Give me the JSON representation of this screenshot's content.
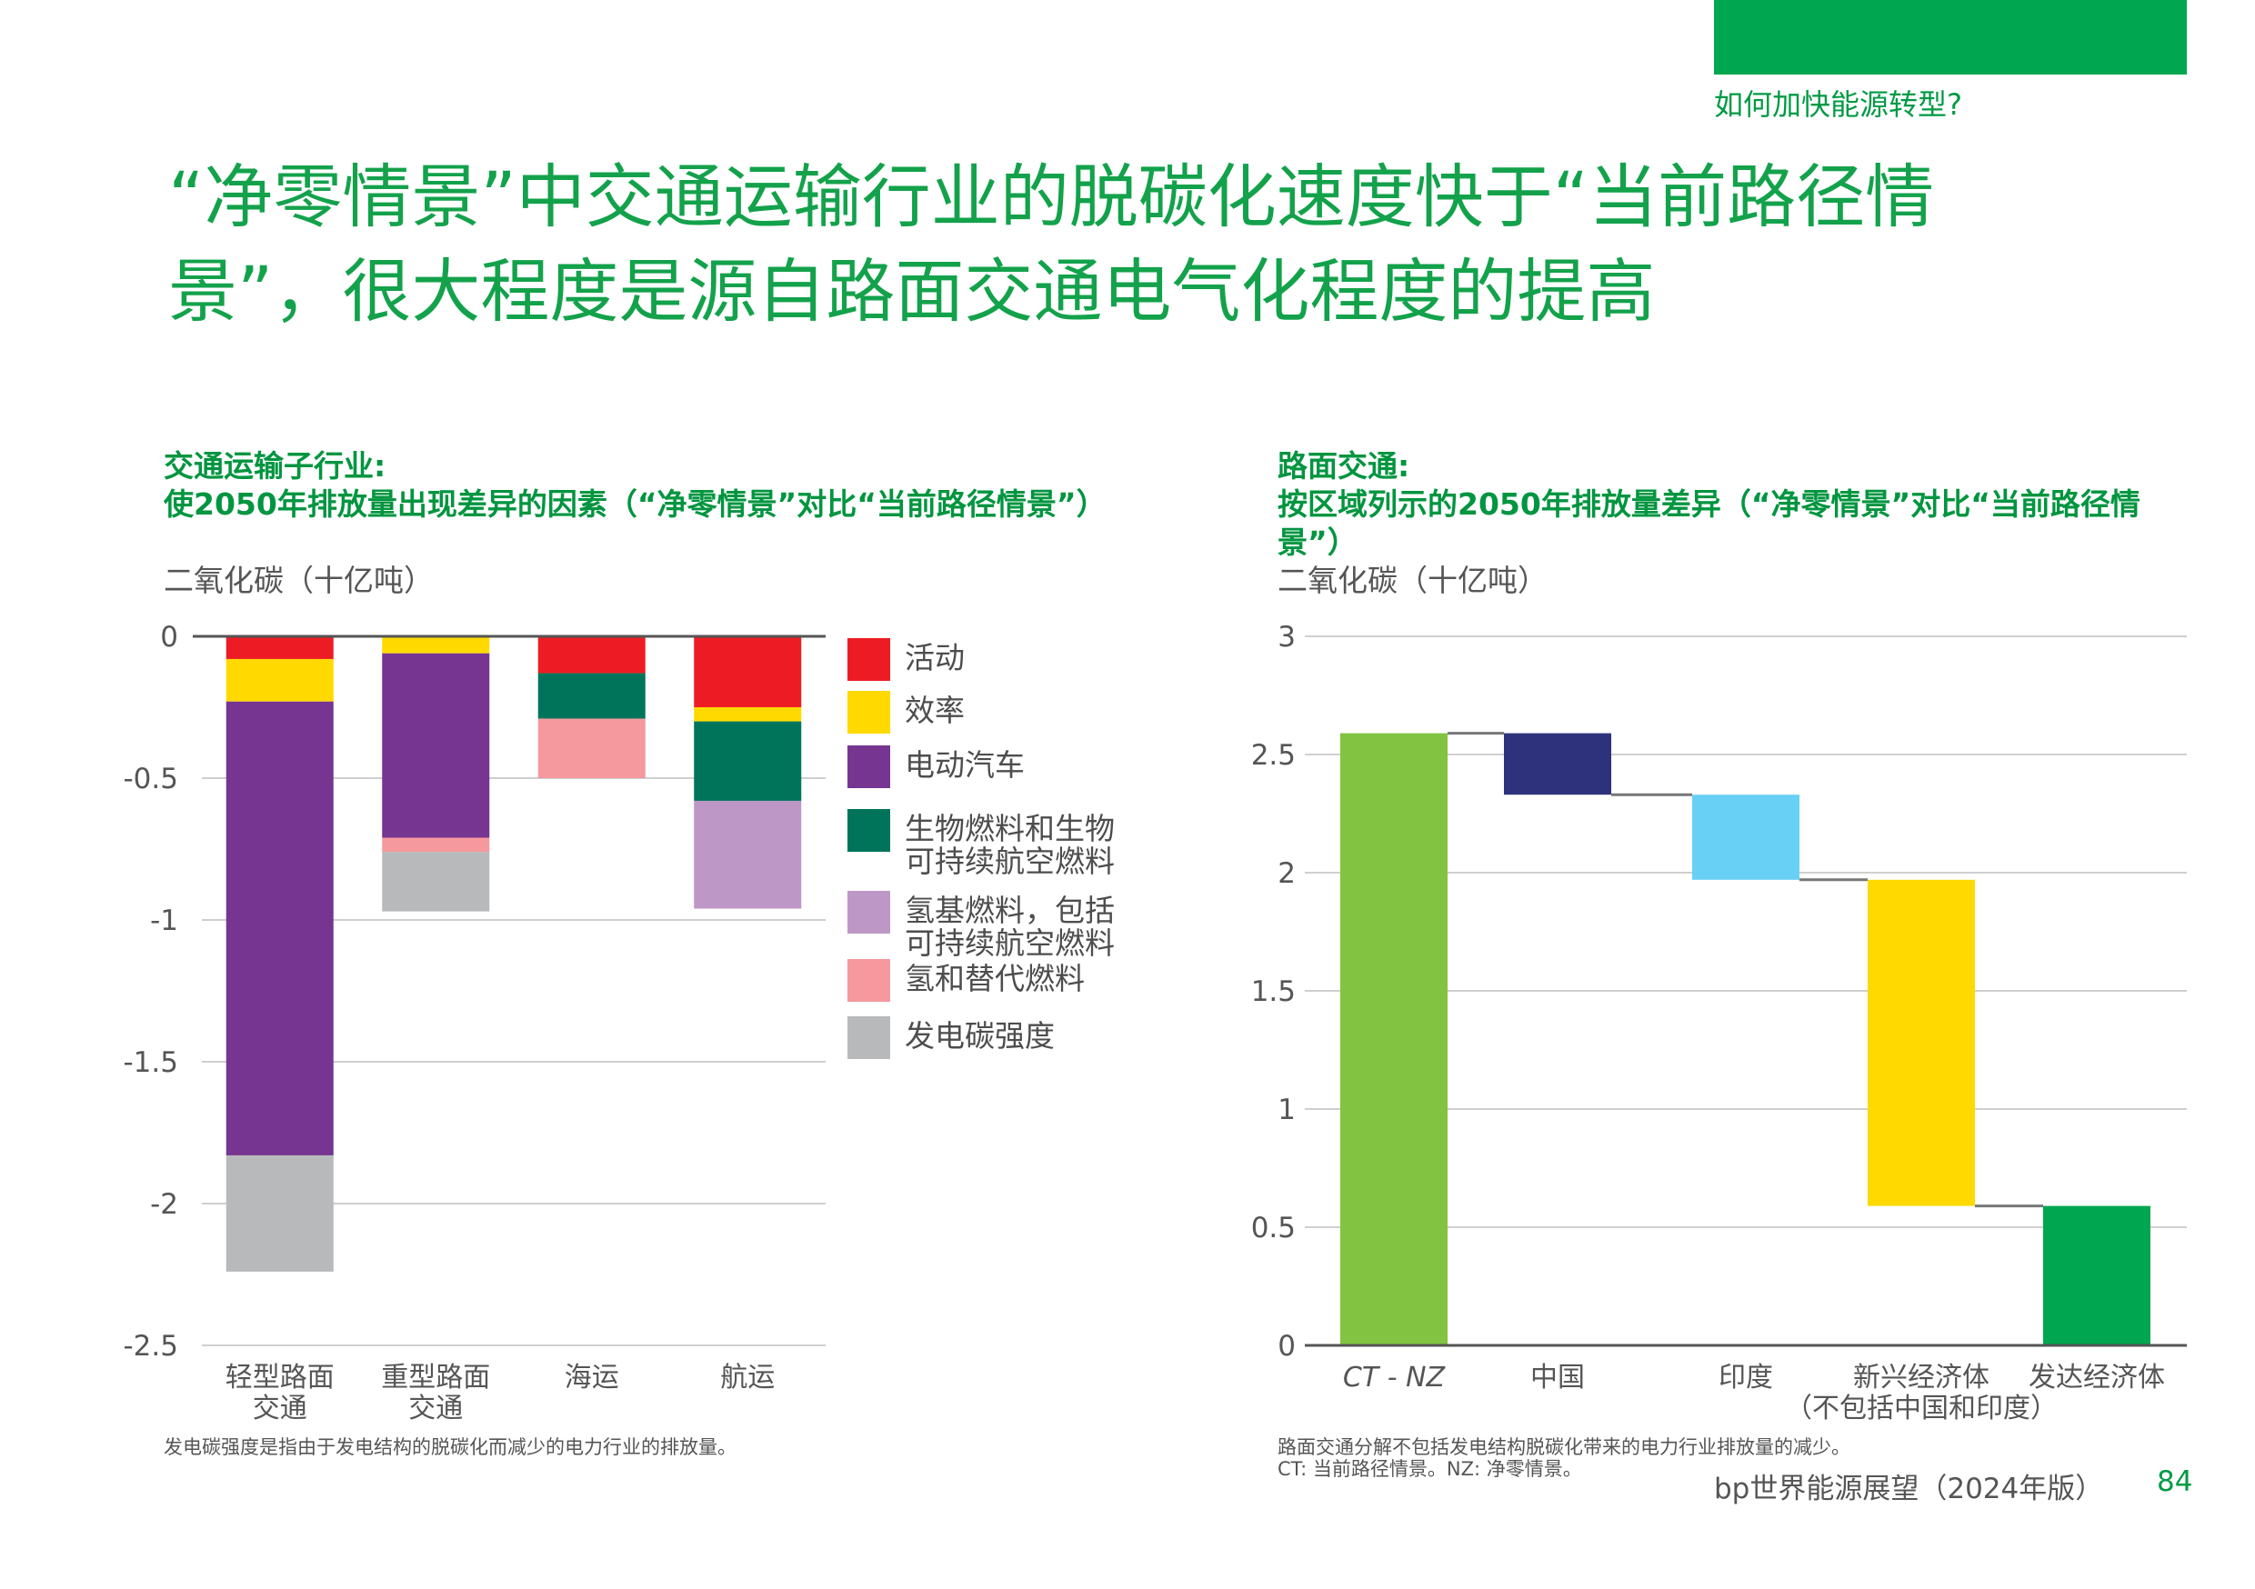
{
  "header": {
    "section_label": "如何加快能源转型?",
    "title_line1": "“净零情景”中交通运输行业的脱碳化速度快于“当前路径情",
    "title_line2": "景”，很大程度是源自路面交通电气化程度的提高",
    "accent_color": "#00a650"
  },
  "footer": {
    "publication": "bp世界能源展望（2024年版）",
    "page_number": "84"
  },
  "chart_data": [
    {
      "type": "bar",
      "stacked": true,
      "title_line1": "交通运输子行业:",
      "title_line2": "使2050年排放量出现差异的因素（“净零情景”对比“当前路径情景”）",
      "ylabel": "二氧化碳（十亿吨）",
      "xlabel": "",
      "ylim": [
        -2.5,
        0
      ],
      "yticks": [
        0,
        -0.5,
        -1,
        -1.5,
        -2,
        -2.5
      ],
      "ytick_labels": [
        "0",
        "-0.5",
        "-1",
        "-1.5",
        "-2",
        "-2.5"
      ],
      "grid": true,
      "legend_position": "right",
      "categories": [
        "轻型路面\n交通",
        "重型路面\n交通",
        "海运",
        "航运"
      ],
      "series": [
        {
          "name": "活动",
          "color": "#ed1c24",
          "values": [
            -0.08,
            0,
            -0.13,
            -0.25
          ]
        },
        {
          "name": "效率",
          "color": "#ffd900",
          "values": [
            -0.15,
            -0.06,
            0,
            -0.05
          ]
        },
        {
          "name": "电动汽车",
          "color": "#763590",
          "values": [
            -1.6,
            -0.65,
            0,
            0
          ]
        },
        {
          "name": "生物燃料和生物\n可持续航空燃料",
          "color": "#00745a",
          "values": [
            0,
            0,
            -0.16,
            -0.28
          ]
        },
        {
          "name": "氢基燃料，包括\n可持续航空燃料",
          "color": "#bd97c6",
          "values": [
            0,
            0,
            0,
            -0.38
          ]
        },
        {
          "name": "氢和替代燃料",
          "color": "#f5999e",
          "values": [
            0,
            -0.05,
            -0.21,
            0
          ]
        },
        {
          "name": "发电碳强度",
          "color": "#b8b9bb",
          "values": [
            -0.41,
            -0.21,
            0,
            0
          ]
        }
      ],
      "footnote": "发电碳强度是指由于发电结构的脱碳化而减少的电力行业的排放量。"
    },
    {
      "type": "waterfall",
      "title_line1": "路面交通:",
      "title_line2": "按区域列示的2050年排放量差异（“净零情景”对比“当前路径情",
      "title_line3": "景”）",
      "ylabel": "二氧化碳（十亿吨）",
      "xlabel": "",
      "ylim": [
        0,
        3
      ],
      "yticks": [
        0,
        0.5,
        1,
        1.5,
        2,
        2.5,
        3
      ],
      "ytick_labels": [
        "0",
        "0.5",
        "1",
        "1.5",
        "2",
        "2.5",
        "3"
      ],
      "grid": true,
      "categories": [
        "CT - NZ",
        "中国",
        "印度",
        "新兴经济体\n（不包括中国和印度）",
        "发达经济体"
      ],
      "steps": [
        {
          "label": "CT - NZ",
          "kind": "total",
          "value": 2.59,
          "color": "#82c341"
        },
        {
          "label": "中国",
          "kind": "delta",
          "value": -0.26,
          "color": "#2e327d"
        },
        {
          "label": "印度",
          "kind": "delta",
          "value": -0.36,
          "color": "#69d0f5"
        },
        {
          "label": "新兴经济体（不包括中国和印度）",
          "kind": "delta",
          "value": -1.38,
          "color": "#ffd900"
        },
        {
          "label": "发达经济体",
          "kind": "delta",
          "value": -0.59,
          "color": "#00a650"
        }
      ],
      "footnote_line1": "路面交通分解不包括发电结构脱碳化带来的电力行业排放量的减少。",
      "footnote_line2": "CT: 当前路径情景。NZ: 净零情景。"
    }
  ]
}
